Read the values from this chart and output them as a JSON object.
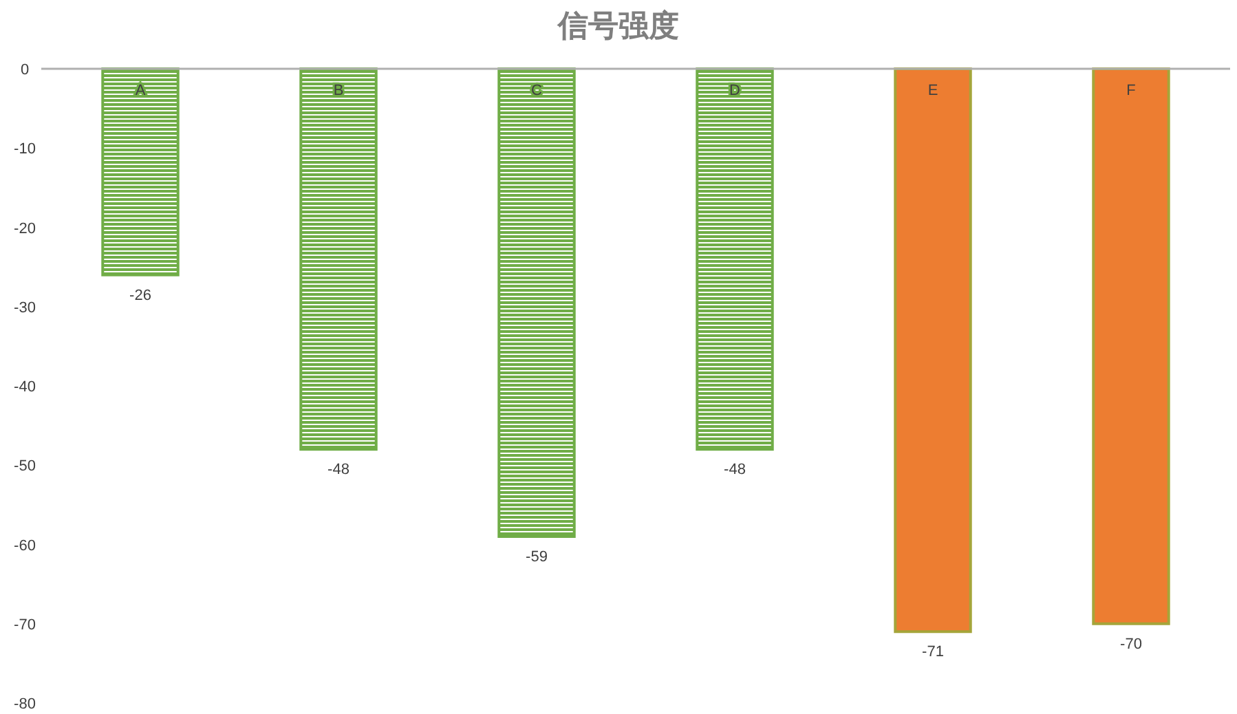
{
  "chart_data": {
    "type": "bar",
    "title": "信号强度",
    "categories": [
      "A",
      "B",
      "C",
      "D",
      "E",
      "F"
    ],
    "values": [
      -26,
      -48,
      -59,
      -48,
      -71,
      -70
    ],
    "colors": [
      "#70ad47",
      "#70ad47",
      "#70ad47",
      "#70ad47",
      "#ed7d31",
      "#ed7d31"
    ],
    "ylim": [
      -80,
      0
    ],
    "yticks": [
      -80,
      -70,
      -60,
      -50,
      -40,
      -30,
      -20,
      -10,
      0
    ],
    "grid": false,
    "data_labels": true
  }
}
